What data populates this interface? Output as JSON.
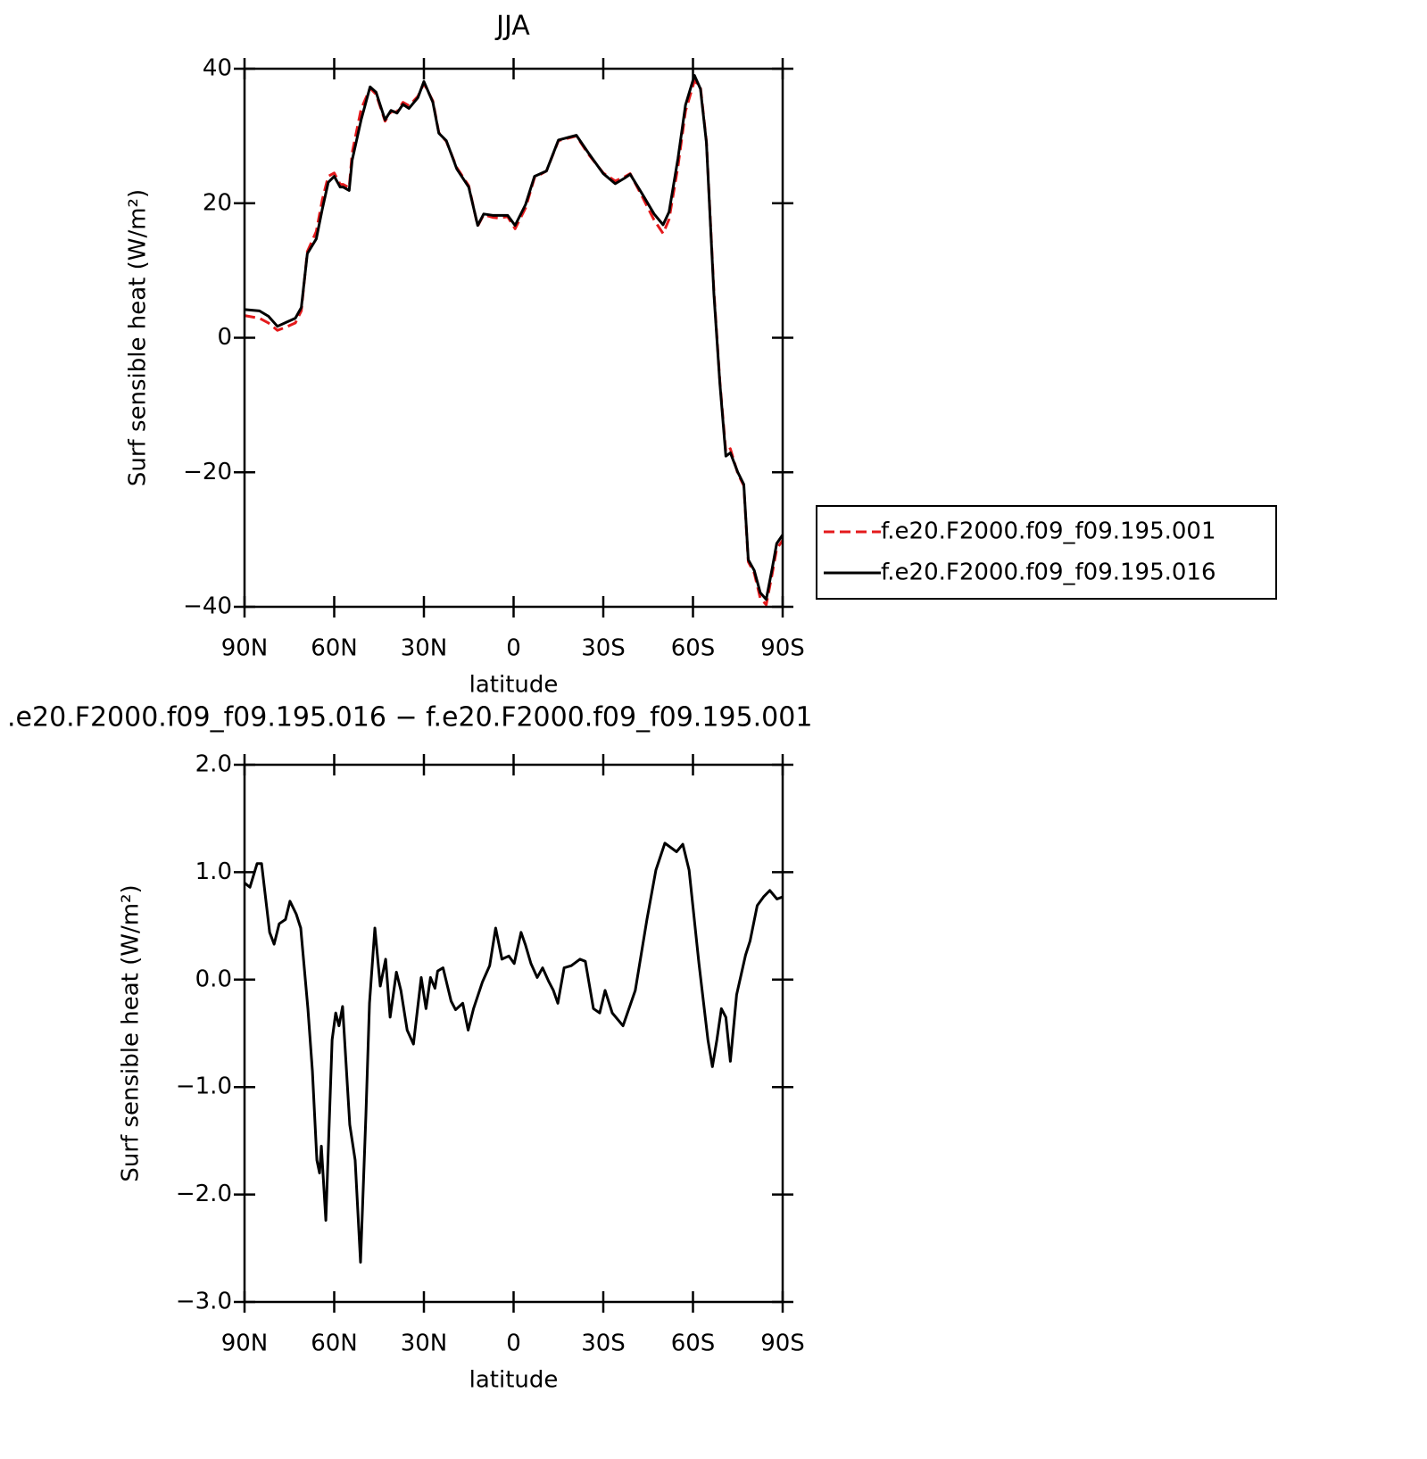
{
  "chart_data": [
    {
      "type": "line",
      "title": "JJA",
      "xlabel": "latitude",
      "ylabel": "Surf sensible heat (W/m²)",
      "xlim": [
        90,
        -90
      ],
      "xticks": [
        {
          "value": 90,
          "label": "90N"
        },
        {
          "value": 60,
          "label": "60N"
        },
        {
          "value": 30,
          "label": "30N"
        },
        0,
        {
          "value": -30,
          "label": "30S"
        },
        {
          "value": -60,
          "label": "60S"
        },
        {
          "value": -90,
          "label": "90S"
        }
      ],
      "ylim": [
        -40,
        40
      ],
      "yticks": [
        {
          "value": -40,
          "label": "−40"
        },
        {
          "value": -20,
          "label": "−20"
        },
        0,
        20,
        40
      ],
      "legend": "right",
      "x": [
        90,
        85,
        82,
        79,
        76,
        73,
        71,
        69,
        66,
        64,
        62,
        60,
        58,
        57,
        55,
        54,
        51,
        48,
        46,
        43,
        41,
        39,
        37,
        35,
        32,
        30,
        27,
        25,
        22.5,
        19,
        15,
        12,
        10,
        7,
        5,
        2,
        -0.5,
        -4,
        -7,
        -11,
        -15,
        -21,
        -25,
        -30,
        -34,
        -37,
        -39,
        -43,
        -47,
        -50,
        -52,
        -55,
        -57.5,
        -60.5,
        -62.5,
        -64.5,
        -67,
        -69,
        -71,
        -72.5,
        -75,
        -77,
        -78.5,
        -80.5,
        -82.5,
        -84.5,
        -86.5,
        -88,
        -90
      ],
      "series": [
        {
          "name": "f.e20.F2000.f09_f09.195.001",
          "color": "#e41a1c",
          "dashed": true,
          "values": [
            3.3,
            2.9,
            2.2,
            1.1,
            1.6,
            2.2,
            4.0,
            12.8,
            15.8,
            20.5,
            24.0,
            24.5,
            22.8,
            22.8,
            22.3,
            27.5,
            34.0,
            37.1,
            36.2,
            32.2,
            33.6,
            33.6,
            35.0,
            34.5,
            35.9,
            37.8,
            35.2,
            30.5,
            29.2,
            25.3,
            22.6,
            16.6,
            18.3,
            17.9,
            17.8,
            18.0,
            16.2,
            19.3,
            23.8,
            24.8,
            29.3,
            30.0,
            27.3,
            24.5,
            23.3,
            23.9,
            24.4,
            21.0,
            17.5,
            15.5,
            17.6,
            25.5,
            33.7,
            38.2,
            37.3,
            29.2,
            7.0,
            -6.5,
            -17.0,
            -16.5,
            -20.2,
            -22.0,
            -33.3,
            -35.0,
            -38.7,
            -39.7,
            -35.1,
            -31.4,
            -30.1
          ]
        },
        {
          "name": "f.e20.F2000.f09_f09.195.016",
          "color": "#000000",
          "dashed": false,
          "values": [
            4.2,
            4.0,
            3.2,
            1.7,
            2.3,
            2.9,
            4.5,
            12.5,
            14.7,
            19.1,
            23.1,
            24,
            22.4,
            22.4,
            21.9,
            26.4,
            32.4,
            37.3,
            36.5,
            32.4,
            33.8,
            33.4,
            34.7,
            34.1,
            35.7,
            38.1,
            35,
            30.4,
            29.3,
            25.1,
            22.4,
            16.7,
            18.4,
            18.2,
            18.2,
            18.2,
            16.7,
            19.8,
            24,
            24.8,
            29.4,
            30.1,
            27.5,
            24.4,
            22.9,
            23.7,
            24.3,
            21.4,
            18.4,
            16.8,
            18.7,
            26.7,
            34.6,
            39,
            37,
            29,
            6.5,
            -6.8,
            -17.6,
            -17.1,
            -20,
            -21.8,
            -33,
            -34.6,
            -37.9,
            -38.9,
            -34.3,
            -30.6,
            -29.3
          ]
        }
      ]
    },
    {
      "type": "line",
      "title": ".e20.F2000.f09_f09.195.016 − f.e20.F2000.f09_f09.195.001",
      "xlabel": "latitude",
      "ylabel": "Surf sensible heat (W/m²)",
      "xlim": [
        90,
        -90
      ],
      "xticks": [
        {
          "value": 90,
          "label": "90N"
        },
        {
          "value": 60,
          "label": "60N"
        },
        {
          "value": 30,
          "label": "30N"
        },
        0,
        {
          "value": -30,
          "label": "30S"
        },
        {
          "value": -60,
          "label": "60S"
        },
        {
          "value": -90,
          "label": "90S"
        }
      ],
      "ylim": [
        -3,
        2
      ],
      "yticks": [
        {
          "value": -3,
          "label": "−3.0"
        },
        {
          "value": -2,
          "label": "−2.0"
        },
        {
          "value": -1,
          "label": "−1.0"
        },
        {
          "value": 0,
          "label": "0.0"
        },
        {
          "value": 1,
          "label": "1.0"
        },
        {
          "value": 2,
          "label": "2.0"
        }
      ],
      "x": [
        90,
        88.2,
        85.8,
        84.3,
        81.6,
        80.1,
        78.4,
        76.3,
        74.8,
        72.7,
        71.2,
        68.8,
        67.3,
        65.8,
        64.9,
        64.3,
        62.8,
        60.7,
        59.5,
        58.4,
        57.2,
        54.8,
        53.0,
        51.2,
        49.4,
        48.2,
        46.4,
        44.6,
        42.8,
        41.3,
        39.2,
        37.7,
        35.6,
        33.5,
        30.9,
        29.3,
        27.8,
        26.3,
        25.4,
        23.6,
        20.9,
        19.4,
        17.0,
        15.2,
        13.4,
        10.4,
        8.0,
        6.0,
        3.9,
        1.6,
        -0.2,
        -2.5,
        -4.0,
        -5.8,
        -7.9,
        -9.7,
        -11.8,
        -13.3,
        -14.8,
        -16.9,
        -19.3,
        -22.2,
        -24.0,
        -26.7,
        -28.8,
        -30.6,
        -33.0,
        -36.6,
        -40.7,
        -44.6,
        -47.6,
        -50.6,
        -54.5,
        -56.6,
        -58.7,
        -62.0,
        -65.0,
        -66.5,
        -68.0,
        -69.5,
        -71.0,
        -72.5,
        -74.6,
        -77.6,
        -79.1,
        -81.5,
        -83.6,
        -85.7,
        -88.1,
        -90
      ],
      "series": [
        {
          "color": "#000000",
          "dashed": false,
          "values": [
            0.9,
            0.86,
            1.08,
            1.08,
            0.44,
            0.33,
            0.52,
            0.56,
            0.73,
            0.61,
            0.48,
            -0.27,
            -0.85,
            -1.68,
            -1.8,
            -1.55,
            -2.24,
            -0.56,
            -0.31,
            -0.43,
            -0.25,
            -1.35,
            -1.68,
            -2.63,
            -1.26,
            -0.22,
            0.48,
            -0.06,
            0.19,
            -0.35,
            0.07,
            -0.1,
            -0.47,
            -0.6,
            0.02,
            -0.27,
            0.02,
            -0.08,
            0.08,
            0.11,
            -0.2,
            -0.28,
            -0.22,
            -0.47,
            -0.27,
            -0.02,
            0.13,
            0.48,
            0.19,
            0.22,
            0.15,
            0.44,
            0.32,
            0.15,
            0.02,
            0.11,
            -0.02,
            -0.1,
            -0.22,
            0.11,
            0.13,
            0.19,
            0.17,
            -0.27,
            -0.31,
            -0.1,
            -0.31,
            -0.43,
            -0.1,
            0.56,
            1.02,
            1.27,
            1.19,
            1.26,
            1.02,
            0.15,
            -0.56,
            -0.81,
            -0.56,
            -0.27,
            -0.35,
            -0.76,
            -0.14,
            0.23,
            0.36,
            0.69,
            0.77,
            0.83,
            0.75,
            0.77
          ]
        }
      ]
    }
  ]
}
